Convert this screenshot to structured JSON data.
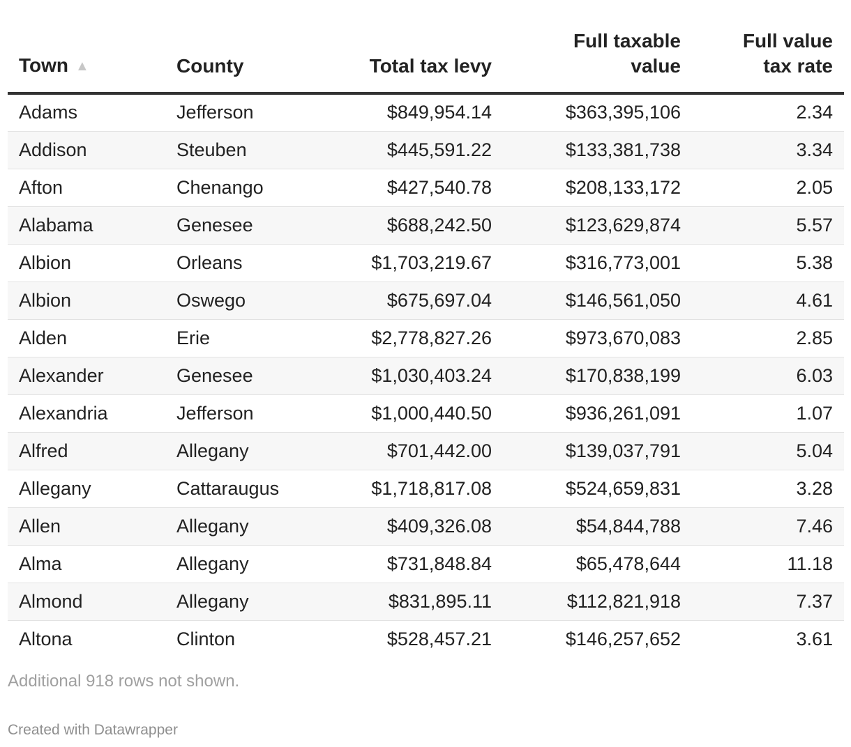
{
  "chart_data": {
    "type": "table",
    "columns": [
      {
        "key": "town",
        "label": "Town",
        "sorted": "ascending"
      },
      {
        "key": "county",
        "label": "County"
      },
      {
        "key": "levy",
        "label": "Total tax levy"
      },
      {
        "key": "value",
        "label_lines": [
          "Full taxable",
          "value"
        ]
      },
      {
        "key": "rate",
        "label_lines": [
          "Full value",
          "tax rate"
        ]
      }
    ],
    "sort_icon": "sort-ascending-icon",
    "rows": [
      {
        "town": "Adams",
        "county": "Jefferson",
        "levy": "$849,954.14",
        "value": "$363,395,106",
        "rate": "2.34"
      },
      {
        "town": "Addison",
        "county": "Steuben",
        "levy": "$445,591.22",
        "value": "$133,381,738",
        "rate": "3.34"
      },
      {
        "town": "Afton",
        "county": "Chenango",
        "levy": "$427,540.78",
        "value": "$208,133,172",
        "rate": "2.05"
      },
      {
        "town": "Alabama",
        "county": "Genesee",
        "levy": "$688,242.50",
        "value": "$123,629,874",
        "rate": "5.57"
      },
      {
        "town": "Albion",
        "county": "Orleans",
        "levy": "$1,703,219.67",
        "value": "$316,773,001",
        "rate": "5.38"
      },
      {
        "town": "Albion",
        "county": "Oswego",
        "levy": "$675,697.04",
        "value": "$146,561,050",
        "rate": "4.61"
      },
      {
        "town": "Alden",
        "county": "Erie",
        "levy": "$2,778,827.26",
        "value": "$973,670,083",
        "rate": "2.85"
      },
      {
        "town": "Alexander",
        "county": "Genesee",
        "levy": "$1,030,403.24",
        "value": "$170,838,199",
        "rate": "6.03"
      },
      {
        "town": "Alexandria",
        "county": "Jefferson",
        "levy": "$1,000,440.50",
        "value": "$936,261,091",
        "rate": "1.07"
      },
      {
        "town": "Alfred",
        "county": "Allegany",
        "levy": "$701,442.00",
        "value": "$139,037,791",
        "rate": "5.04"
      },
      {
        "town": "Allegany",
        "county": "Cattaraugus",
        "levy": "$1,718,817.08",
        "value": "$524,659,831",
        "rate": "3.28"
      },
      {
        "town": "Allen",
        "county": "Allegany",
        "levy": "$409,326.08",
        "value": "$54,844,788",
        "rate": "7.46"
      },
      {
        "town": "Alma",
        "county": "Allegany",
        "levy": "$731,848.84",
        "value": "$65,478,644",
        "rate": "11.18"
      },
      {
        "town": "Almond",
        "county": "Allegany",
        "levy": "$831,895.11",
        "value": "$112,821,918",
        "rate": "7.37"
      },
      {
        "town": "Altona",
        "county": "Clinton",
        "levy": "$528,457.21",
        "value": "$146,257,652",
        "rate": "3.61"
      }
    ],
    "notes": "Additional 918 rows not shown.",
    "credit": "Created with Datawrapper"
  },
  "colors": {
    "text": "#222222",
    "header_rule": "#333333",
    "row_stripe": "#f7f7f7",
    "row_divider": "#e2e2e2",
    "muted": "#a0a0a0",
    "sort_icon": "#c7c7c7"
  }
}
